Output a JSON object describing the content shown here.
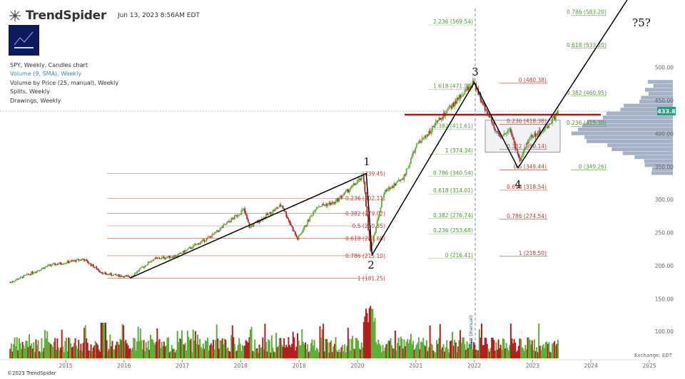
{
  "header": {
    "brand": "TrendSpider",
    "timestamp": "Jun 13, 2023 8:56AM EDT"
  },
  "info": {
    "line1": "SPY, Weekly, Candles chart",
    "line2": "Volume (9, SMA), Weekly",
    "line3": "Volume by Price (25, manual), Weekly",
    "line4": "Splits, Weekly",
    "line5": "Drawings, Weekly"
  },
  "footer": "©2023 TrendSpider",
  "colors": {
    "up": "#5fae3a",
    "down": "#b2201e",
    "fib_red": "#c0392b",
    "fib_green": "#4f9a2f",
    "vbp": "#8e9eb8",
    "price_tag": "#26a07e",
    "resistance": "#a81c1c"
  },
  "chart_data": {
    "type": "candlestick",
    "symbol": "SPY",
    "interval": "Weekly",
    "price_axis": {
      "ticks": [
        500,
        450,
        400,
        350,
        300,
        250,
        200,
        150
      ],
      "range": [
        150,
        500
      ]
    },
    "volume_axis": {
      "ticks": [
        100
      ],
      "label": "100.00"
    },
    "x_ticks": [
      "2015",
      "2016",
      "2017",
      "2018",
      "2019",
      "2020",
      "2021",
      "2022",
      "2023",
      "2024",
      "2025"
    ],
    "last_price": "433.8",
    "exchange_label": "Exchange: EDT",
    "annotation_vline": "Start (manual)",
    "wave_labels": [
      "1",
      "2",
      "3",
      "4",
      "?5?"
    ],
    "elliott_path": [
      {
        "date": "2016.1",
        "price": 181.25
      },
      {
        "date": "2020.15",
        "price": 339.45
      },
      {
        "date": "2020.25",
        "price": 216.41
      },
      {
        "date": "2022.0",
        "price": 477
      },
      {
        "date": "2022.75",
        "price": 348
      },
      {
        "date": "2024.9",
        "price": 640
      }
    ],
    "fib_left": [
      {
        "ratio": "1",
        "price": 339.45,
        "label": "(339.45)"
      },
      {
        "ratio": "0.236",
        "price": 302.11,
        "label": "0.236 (302.11)"
      },
      {
        "ratio": "0.382",
        "price": 279.02,
        "label": "0.382 (279.02)"
      },
      {
        "ratio": "0.5",
        "price": 260.35,
        "label": "0.5 (260.35)"
      },
      {
        "ratio": "0.618",
        "price": 241.68,
        "label": "0.618 (241.68)"
      },
      {
        "ratio": "0.786",
        "price": 215.1,
        "label": "0.786 (215.10)"
      },
      {
        "ratio": "1",
        "price": 181.25,
        "label": "1 (181.25)"
      }
    ],
    "fib_ext_green": [
      {
        "label": "2.236 (569.54)",
        "price": 569.54
      },
      {
        "label": "1.618 (471.94)",
        "price": 471.94
      },
      {
        "label": "1.382 (411.61)",
        "price": 411.61
      },
      {
        "label": "1 (374.34)",
        "price": 374.34
      },
      {
        "label": "0.786 (340.54)",
        "price": 340.54
      },
      {
        "label": "0.618 (314.01)",
        "price": 314.01
      },
      {
        "label": "0.382 (276.74)",
        "price": 276.74
      },
      {
        "label": "0.236 (253.68)",
        "price": 253.68
      },
      {
        "label": "0 (216.41)",
        "price": 216.41
      }
    ],
    "fib_right_red": [
      {
        "label": "0 (480.38)",
        "price": 480.38
      },
      {
        "label": "0.236 (418.38)",
        "price": 418.38
      },
      {
        "label": "0.382 (380.14)",
        "price": 380.14
      },
      {
        "label": "0.5 (349.44)",
        "price": 349.44
      },
      {
        "label": "0.618 (318.54)",
        "price": 318.54
      },
      {
        "label": "0.786 (274.54)",
        "price": 274.54
      },
      {
        "label": "1 (218.50)",
        "price": 218.5
      }
    ],
    "fib_far_green": [
      {
        "label": "0.786 (583.20)",
        "price": 583.2
      },
      {
        "label": "0.618 (533.20)",
        "price": 533.2
      },
      {
        "label": "0.382 (460.95)",
        "price": 460.95
      },
      {
        "label": "0.236 (415.30)",
        "price": 415.3
      },
      {
        "label": "0 (349.26)",
        "price": 349.26
      }
    ]
  }
}
